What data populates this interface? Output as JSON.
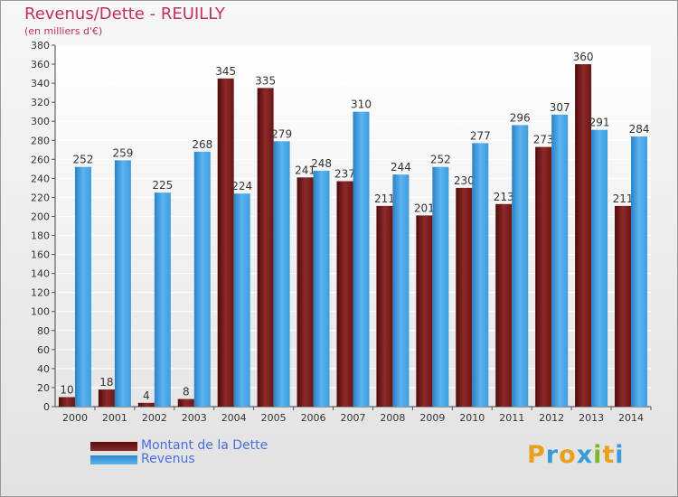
{
  "header": {
    "title": "Revenus/Dette - REUILLY",
    "subtitle": "(en milliers d'€)"
  },
  "chart_data": {
    "type": "bar",
    "categories": [
      "2000",
      "2001",
      "2002",
      "2003",
      "2004",
      "2005",
      "2006",
      "2007",
      "2008",
      "2009",
      "2010",
      "2011",
      "2012",
      "2013",
      "2014"
    ],
    "series": [
      {
        "name": "Montant de la Dette",
        "color": "#7b1c1c",
        "values": [
          10,
          18,
          4,
          8,
          345,
          335,
          241,
          237,
          211,
          201,
          230,
          213,
          273,
          360,
          211
        ]
      },
      {
        "name": "Revenus",
        "color": "#3d9ee2",
        "values": [
          252,
          259,
          225,
          268,
          224,
          279,
          248,
          310,
          244,
          252,
          277,
          296,
          307,
          291,
          284
        ]
      }
    ],
    "ylim": [
      0,
      380
    ],
    "ytick_step": 20,
    "grid": true,
    "legend_position": "bottom-left"
  },
  "legend": {
    "items": [
      {
        "label": "Montant de la Dette",
        "color": "#7b1c1c"
      },
      {
        "label": "Revenus",
        "color": "#3d9ee2"
      }
    ]
  },
  "logo": {
    "text": "Proxiti"
  }
}
